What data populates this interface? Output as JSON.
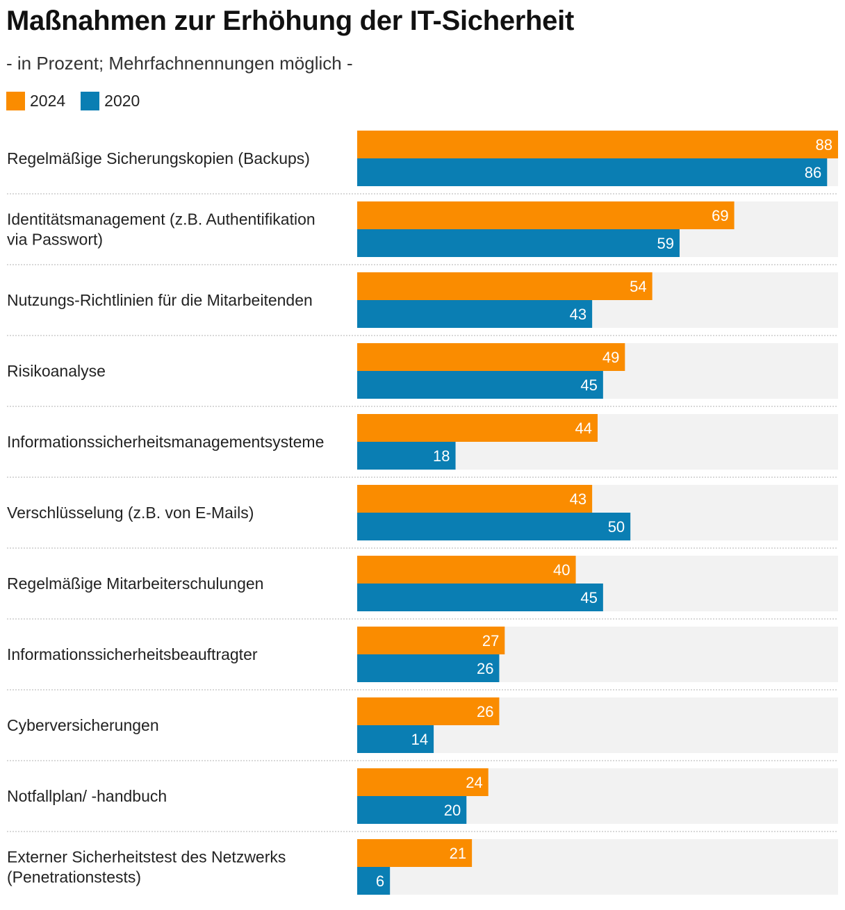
{
  "chart_data": {
    "type": "bar",
    "orientation": "horizontal",
    "title": "Maßnahmen zur Erhöhung der IT-Sicherheit",
    "subtitle": "- in Prozent; Mehrfachnennungen möglich -",
    "xlim": [
      0,
      88
    ],
    "categories": [
      [
        "Regelmäßige Sicherungskopien (Backups)"
      ],
      [
        "Identitätsmanagement (z.B. Authentifikation",
        "via Passwort)"
      ],
      [
        "Nutzungs-Richtlinien für die Mitarbeitenden"
      ],
      [
        "Risikoanalyse"
      ],
      [
        "Informationssicherheitsmanagementsysteme"
      ],
      [
        "Verschlüsselung (z.B. von E-Mails)"
      ],
      [
        "Regelmäßige Mitarbeiterschulungen"
      ],
      [
        "Informationssicherheitsbeauftragter"
      ],
      [
        "Cyberversicherungen"
      ],
      [
        "Notfallplan/ -handbuch"
      ],
      [
        "Externer Sicherheitstest des Netzwerks",
        "(Penetrationstests)"
      ]
    ],
    "series": [
      {
        "name": "2024",
        "color": "#FA8C00",
        "values": [
          88,
          69,
          54,
          49,
          44,
          43,
          40,
          27,
          26,
          24,
          21
        ]
      },
      {
        "name": "2020",
        "color": "#0A7EB3",
        "values": [
          86,
          59,
          43,
          45,
          18,
          50,
          45,
          26,
          14,
          20,
          6
        ]
      }
    ],
    "track_color": "#F2F2F2",
    "separator_color": "#CCCCCC"
  }
}
